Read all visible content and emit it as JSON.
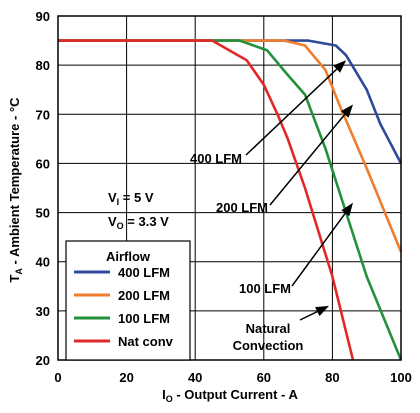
{
  "chart_data": {
    "type": "line",
    "xlabel_main": "I",
    "xlabel_sub": "O",
    "xlabel_rest": " - Output Current - A",
    "ylabel_main": "T",
    "ylabel_sub": "A",
    "ylabel_rest": " - Ambient Temperature - °C",
    "xlim": [
      0,
      100
    ],
    "ylim": [
      20,
      90
    ],
    "xticks": [
      "0",
      "20",
      "40",
      "60",
      "80",
      "100"
    ],
    "yticks": [
      "20",
      "30",
      "40",
      "50",
      "60",
      "70",
      "80",
      "90"
    ],
    "grid": true,
    "conditions": {
      "vi_main": "V",
      "vi_sub": "I",
      "vi_rest": " = 5 V",
      "vo_main": "V",
      "vo_sub": "O",
      "vo_rest": " = 3.3 V"
    },
    "legend": {
      "title": "Airflow",
      "placement": "lower-left"
    },
    "annotations": {
      "a400": "400 LFM",
      "a200": "200 LFM",
      "a100": "100 LFM",
      "anat1": "Natural",
      "anat2": "Convection"
    },
    "series": [
      {
        "name": "400 LFM",
        "color": "#2e4a9c",
        "x": [
          0,
          73,
          81,
          84,
          90,
          94,
          100
        ],
        "y": [
          85,
          85,
          84,
          82,
          75,
          68,
          60
        ]
      },
      {
        "name": "200 LFM",
        "color": "#ef7d2e",
        "x": [
          0,
          66,
          72,
          78,
          82,
          90,
          100
        ],
        "y": [
          85,
          85,
          84,
          79,
          72,
          59,
          42
        ]
      },
      {
        "name": "100 LFM",
        "color": "#23913c",
        "x": [
          0,
          53,
          61,
          67,
          72,
          78,
          84,
          90,
          100
        ],
        "y": [
          85,
          85,
          83,
          78,
          74,
          63,
          50,
          37,
          20
        ]
      },
      {
        "name": "Nat conv",
        "color": "#e02828",
        "x": [
          0,
          45,
          55,
          60,
          64,
          67,
          72,
          80,
          86
        ],
        "y": [
          85,
          85,
          81,
          76,
          70,
          65,
          55,
          37,
          20
        ]
      }
    ]
  }
}
